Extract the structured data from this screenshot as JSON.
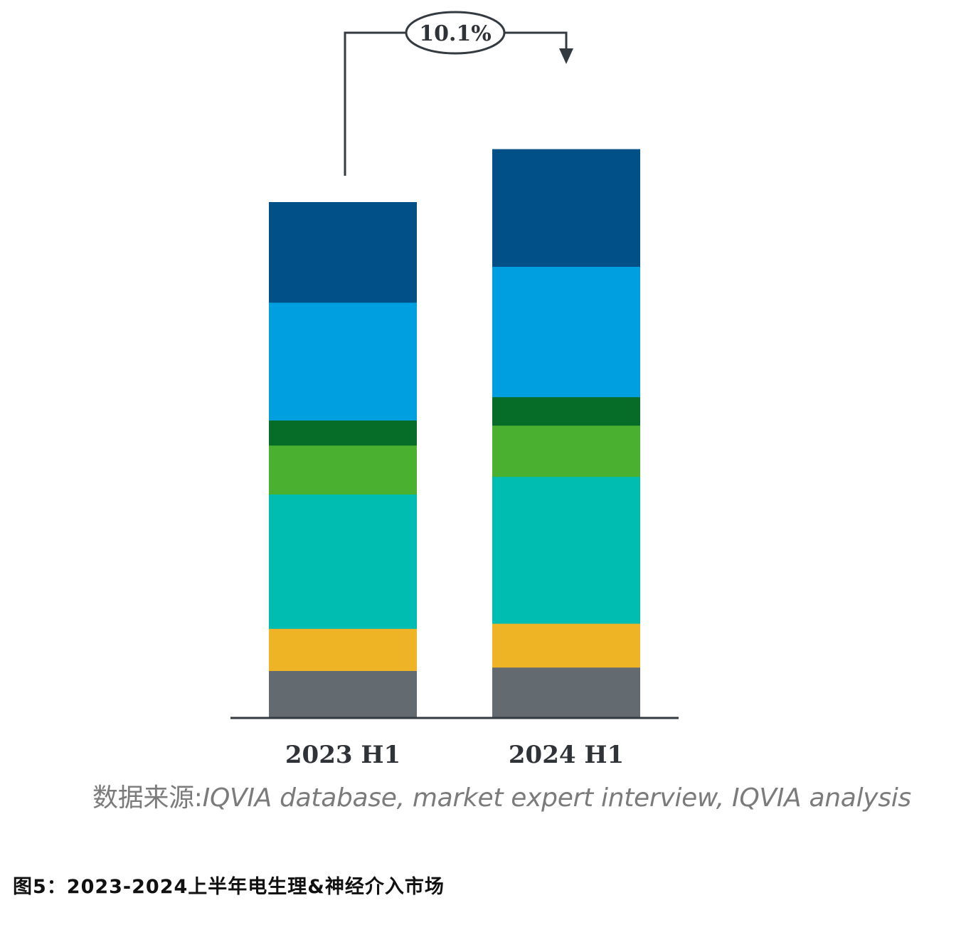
{
  "chart_data": {
    "type": "bar",
    "stacked": true,
    "categories": [
      "2023 H1",
      "2024 H1"
    ],
    "series": [
      {
        "color": "#646b70",
        "values": [
          8.2,
          8.8
        ]
      },
      {
        "color": "#efb326",
        "values": [
          7.4,
          7.7
        ]
      },
      {
        "color": "#00bdb2",
        "values": [
          23.6,
          25.8
        ]
      },
      {
        "color": "#4ab02f",
        "values": [
          8.6,
          9.0
        ]
      },
      {
        "color": "#056d27",
        "values": [
          4.4,
          5.0
        ]
      },
      {
        "color": "#00a0e0",
        "values": [
          20.7,
          22.9
        ]
      },
      {
        "color": "#015087",
        "values": [
          17.6,
          20.6
        ]
      }
    ],
    "growth_label": "10.1%",
    "grid": false,
    "legend": "none"
  },
  "source": {
    "label": "数据来源:",
    "text": "IQVIA database, market expert interview, IQVIA analysis"
  },
  "caption": "图5：2023-2024上半年电生理&神经介入市场"
}
